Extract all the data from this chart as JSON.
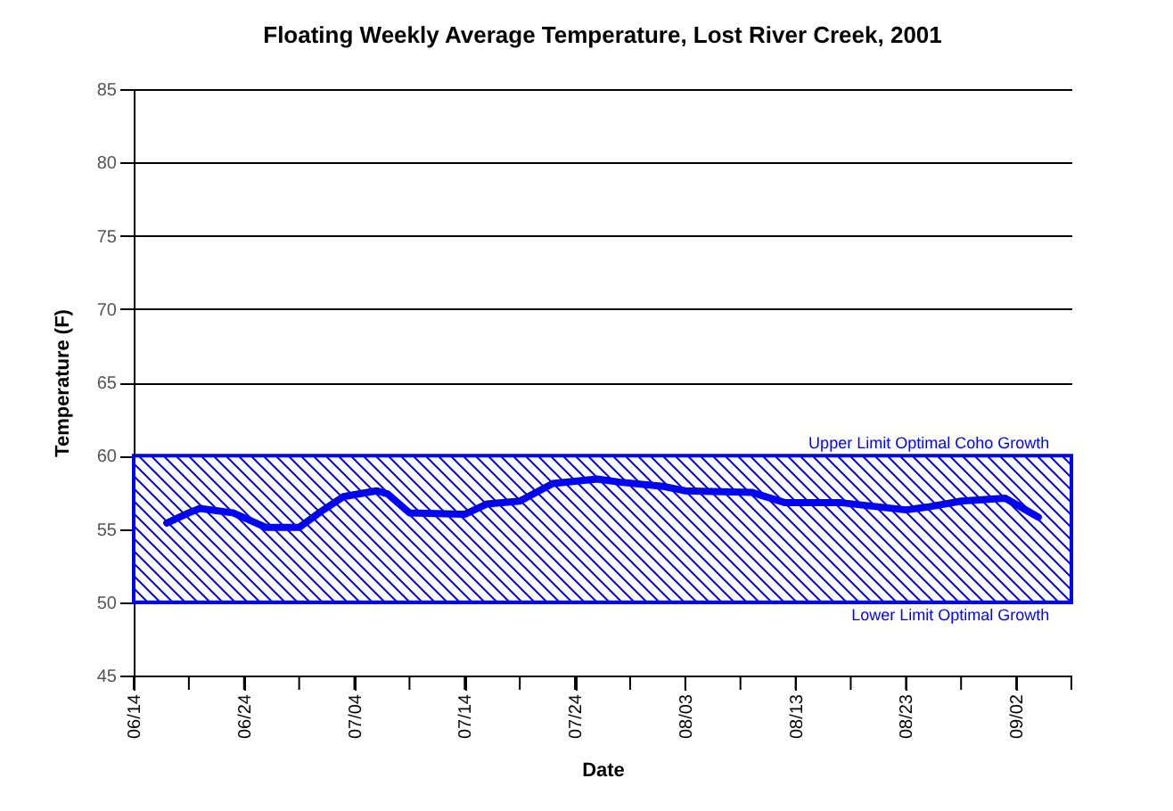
{
  "chart_data": {
    "type": "line",
    "title": "Floating Weekly Average Temperature, Lost River Creek, 2001",
    "xlabel": "Date",
    "ylabel": "Temperature (F)",
    "x": [
      "2001-06-17",
      "2001-06-19",
      "2001-06-20",
      "2001-06-23",
      "2001-06-26",
      "2001-06-29",
      "2001-07-01",
      "2001-07-03",
      "2001-07-06",
      "2001-07-07",
      "2001-07-09",
      "2001-07-14",
      "2001-07-16",
      "2001-07-19",
      "2001-07-22",
      "2001-07-26",
      "2001-07-28",
      "2001-08-01",
      "2001-08-03",
      "2001-08-09",
      "2001-08-12",
      "2001-08-17",
      "2001-08-23",
      "2001-08-25",
      "2001-08-28",
      "2001-09-01",
      "2001-09-04"
    ],
    "series": [
      {
        "color": "#0000ff",
        "values": [
          55.4,
          56.1,
          56.4,
          56.1,
          55.1,
          55.1,
          56.2,
          57.2,
          57.6,
          57.4,
          56.1,
          56.0,
          56.7,
          56.9,
          58.1,
          58.4,
          58.2,
          57.9,
          57.6,
          57.5,
          56.8,
          56.8,
          56.3,
          56.5,
          56.9,
          57.1,
          55.8
        ]
      }
    ],
    "xlim": [
      "2001-06-14",
      "2001-09-07"
    ],
    "xticks": [
      {
        "value": "2001-06-14",
        "label": "06/14"
      },
      {
        "value": "2001-06-19",
        "label": null
      },
      {
        "value": "2001-06-24",
        "label": "06/24"
      },
      {
        "value": "2001-06-29",
        "label": null
      },
      {
        "value": "2001-07-04",
        "label": "07/04"
      },
      {
        "value": "2001-07-09",
        "label": null
      },
      {
        "value": "2001-07-14",
        "label": "07/14"
      },
      {
        "value": "2001-07-19",
        "label": null
      },
      {
        "value": "2001-07-24",
        "label": "07/24"
      },
      {
        "value": "2001-07-29",
        "label": null
      },
      {
        "value": "2001-08-03",
        "label": "08/03"
      },
      {
        "value": "2001-08-08",
        "label": null
      },
      {
        "value": "2001-08-13",
        "label": "08/13"
      },
      {
        "value": "2001-08-18",
        "label": null
      },
      {
        "value": "2001-08-23",
        "label": "08/23"
      },
      {
        "value": "2001-08-28",
        "label": null
      },
      {
        "value": "2001-09-02",
        "label": "09/02"
      },
      {
        "value": "2001-09-07",
        "label": null
      }
    ],
    "ylim": [
      45,
      85
    ],
    "yticks": [
      45,
      50,
      55,
      60,
      65,
      70,
      75,
      80,
      85
    ],
    "grid": "y",
    "marker": "none",
    "line_style": "solid",
    "legend": false,
    "bands": [
      {
        "axis": "y",
        "from": 50,
        "to": 60,
        "color": "#0000ff"
      }
    ],
    "annotations": [
      {
        "text": "Upper Limit Optimal Coho Growth",
        "x": "2001-09-05",
        "y": 60
      },
      {
        "text": "Lower Limit Optimal Growth",
        "x": "2001-09-05",
        "y": 50
      }
    ]
  }
}
